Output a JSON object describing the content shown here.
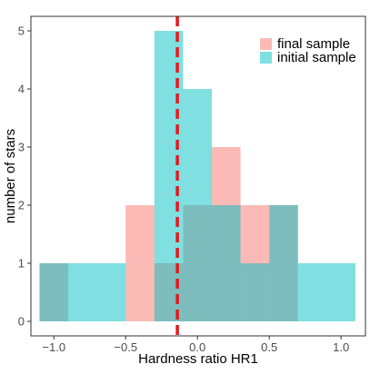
{
  "colors": {
    "final_sample": "#F8766D",
    "initial_sample": "#00BFC4",
    "median_line": "#E41A1C",
    "panel_border": "#333333",
    "tick": "#333333"
  },
  "chart_data": {
    "type": "histogram",
    "xlabel": "Hardness ratio HR1",
    "ylabel": "number of stars",
    "xlim": [
      -1.16,
      1.17
    ],
    "ylim": [
      -0.25,
      5.25
    ],
    "x_ticks": [
      {
        "value": -1.0,
        "label": "−1.0"
      },
      {
        "value": -0.5,
        "label": "−0.5"
      },
      {
        "value": 0.0,
        "label": "0.0"
      },
      {
        "value": 0.5,
        "label": "0.5"
      },
      {
        "value": 1.0,
        "label": "1.0"
      }
    ],
    "y_ticks": [
      {
        "value": 0,
        "label": "0"
      },
      {
        "value": 1,
        "label": "1"
      },
      {
        "value": 2,
        "label": "2"
      },
      {
        "value": 3,
        "label": "3"
      },
      {
        "value": 4,
        "label": "4"
      },
      {
        "value": 5,
        "label": "5"
      }
    ],
    "bin_width": 0.2,
    "grid": false,
    "legend_position": "top-right",
    "reference_line": {
      "x": -0.14,
      "style": "dashed"
    },
    "series": [
      {
        "name": "final sample",
        "color_key": "final_sample",
        "bins": [
          {
            "x0": -1.1,
            "x1": -0.9,
            "count": 1
          },
          {
            "x0": -0.5,
            "x1": -0.3,
            "count": 2
          },
          {
            "x0": -0.3,
            "x1": -0.1,
            "count": 1
          },
          {
            "x0": -0.1,
            "x1": 0.1,
            "count": 2
          },
          {
            "x0": 0.1,
            "x1": 0.3,
            "count": 3
          },
          {
            "x0": 0.3,
            "x1": 0.5,
            "count": 2
          },
          {
            "x0": 0.5,
            "x1": 0.7,
            "count": 2
          }
        ]
      },
      {
        "name": "initial sample",
        "color_key": "initial_sample",
        "bins": [
          {
            "x0": -1.1,
            "x1": -0.9,
            "count": 1
          },
          {
            "x0": -0.9,
            "x1": -0.7,
            "count": 1
          },
          {
            "x0": -0.7,
            "x1": -0.5,
            "count": 1
          },
          {
            "x0": -0.3,
            "x1": -0.1,
            "count": 5
          },
          {
            "x0": -0.1,
            "x1": 0.1,
            "count": 4
          },
          {
            "x0": 0.1,
            "x1": 0.3,
            "count": 2
          },
          {
            "x0": 0.3,
            "x1": 0.5,
            "count": 1
          },
          {
            "x0": 0.5,
            "x1": 0.7,
            "count": 2
          },
          {
            "x0": 0.7,
            "x1": 0.9,
            "count": 1
          },
          {
            "x0": 0.9,
            "x1": 1.1,
            "count": 1
          }
        ]
      }
    ]
  }
}
